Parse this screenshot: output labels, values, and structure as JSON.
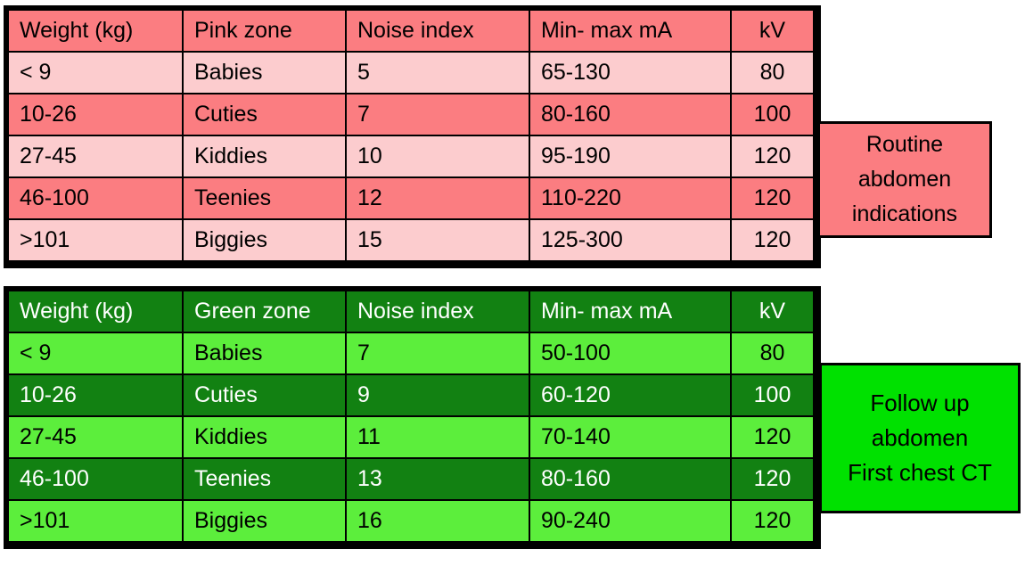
{
  "pink": {
    "callout": {
      "line1": "Routine",
      "line2": "abdomen",
      "line3": "indications"
    },
    "table": {
      "headers": [
        "Weight (kg)",
        "Pink zone",
        "Noise index",
        "Min- max mA",
        "kV"
      ],
      "rows": [
        [
          "< 9",
          "Babies",
          "5",
          "65-130",
          "80"
        ],
        [
          "10-26",
          "Cuties",
          "7",
          "80-160",
          "100"
        ],
        [
          "27-45",
          "Kiddies",
          "10",
          "95-190",
          "120"
        ],
        [
          "46-100",
          "Teenies",
          "12",
          "110-220",
          "120"
        ],
        [
          ">101",
          "Biggies",
          "15",
          "125-300",
          "120"
        ]
      ]
    },
    "colors": {
      "dark": "#FB7D81",
      "light": "#FCCCCE",
      "text": "#000000"
    }
  },
  "green": {
    "callout": {
      "line1": "Follow up",
      "line2": "abdomen",
      "line3": "First chest CT"
    },
    "table": {
      "headers": [
        "Weight (kg)",
        "Green zone",
        "Noise index",
        "Min- max mA",
        "kV"
      ],
      "rows": [
        [
          "< 9",
          "Babies",
          "7",
          "50-100",
          "80"
        ],
        [
          "10-26",
          "Cuties",
          "9",
          "60-120",
          "100"
        ],
        [
          "27-45",
          "Kiddies",
          "11",
          "70-140",
          "120"
        ],
        [
          "46-100",
          "Teenies",
          "13",
          "80-160",
          "120"
        ],
        [
          ">101",
          "Biggies",
          "16",
          "90-240",
          "120"
        ]
      ]
    },
    "colors": {
      "dark": "#128112",
      "light": "#5CEE3C",
      "callout": "#00E100",
      "header_text": "#FFFFFF"
    }
  },
  "chart_data": [
    {
      "type": "table",
      "title": "Pink zone - Routine abdomen indications",
      "columns": [
        "Weight (kg)",
        "Pink zone",
        "Noise index",
        "Min- max mA",
        "kV"
      ],
      "rows": [
        [
          "< 9",
          "Babies",
          5,
          "65-130",
          80
        ],
        [
          "10-26",
          "Cuties",
          7,
          "80-160",
          100
        ],
        [
          "27-45",
          "Kiddies",
          10,
          "95-190",
          120
        ],
        [
          "46-100",
          "Teenies",
          12,
          "110-220",
          120
        ],
        [
          ">101",
          "Biggies",
          15,
          "125-300",
          120
        ]
      ]
    },
    {
      "type": "table",
      "title": "Green zone - Follow up abdomen / First chest CT",
      "columns": [
        "Weight (kg)",
        "Green zone",
        "Noise index",
        "Min- max mA",
        "kV"
      ],
      "rows": [
        [
          "< 9",
          "Babies",
          7,
          "50-100",
          80
        ],
        [
          "10-26",
          "Cuties",
          9,
          "60-120",
          100
        ],
        [
          "27-45",
          "Kiddies",
          11,
          "70-140",
          120
        ],
        [
          "46-100",
          "Teenies",
          13,
          "80-160",
          120
        ],
        [
          ">101",
          "Biggies",
          16,
          "90-240",
          120
        ]
      ]
    }
  ]
}
